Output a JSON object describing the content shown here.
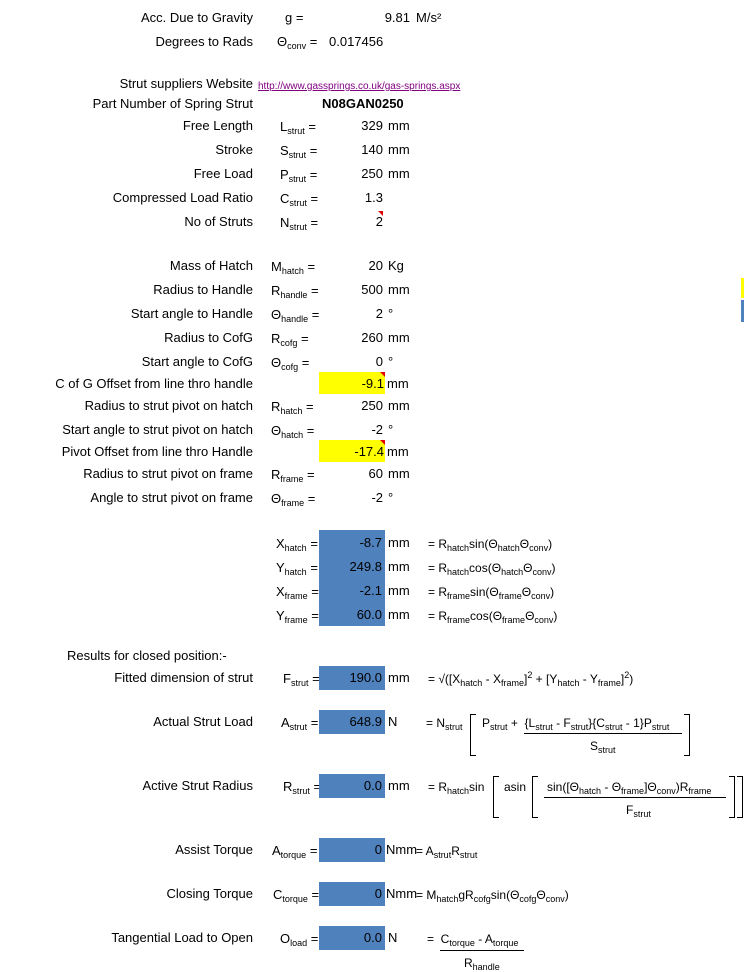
{
  "gravity": {
    "label": "Acc. Due to Gravity",
    "symbol": "g =",
    "value": "9.81",
    "unit": "M/s²"
  },
  "deg_rads": {
    "label": "Degrees to Rads",
    "symbol": "Θ",
    "sub": "conv",
    "eq": " =",
    "value": "0.017456"
  },
  "website": {
    "label": "Strut suppliers Website",
    "url": "http://www.gassprings.co.uk/gas-springs.aspx"
  },
  "part": {
    "label": "Part Number of Spring Strut",
    "value": "N08GAN0250"
  },
  "strut_rows": [
    {
      "label": "Free Length",
      "sym": "L",
      "sub": "strut",
      "value": "329",
      "unit": "mm"
    },
    {
      "label": "Stroke",
      "sym": "S",
      "sub": "strut",
      "value": "140",
      "unit": "mm"
    },
    {
      "label": "Free Load",
      "sym": "P",
      "sub": "strut",
      "value": "250",
      "unit": "mm"
    },
    {
      "label": "Compressed Load Ratio",
      "sym": "C",
      "sub": "strut",
      "value": "1.3",
      "unit": ""
    },
    {
      "label": "No of Struts",
      "sym": "N",
      "sub": "strut",
      "value": "2",
      "unit": ""
    }
  ],
  "hatch_rows": [
    {
      "label": "Mass of Hatch",
      "sym": "M",
      "sub": "hatch",
      "value": "20",
      "unit": "Kg"
    },
    {
      "label": "Radius to Handle",
      "sym": "R",
      "sub": "handle",
      "value": "500",
      "unit": "mm"
    },
    {
      "label": "Start angle to Handle",
      "sym": "Θ",
      "sub": "handle",
      "value": "2",
      "unit": "°"
    },
    {
      "label": "Radius to CofG",
      "sym": "R",
      "sub": "cofg",
      "value": "260",
      "unit": "mm"
    },
    {
      "label": "Start angle to CofG",
      "sym": "Θ",
      "sub": "cofg",
      "value": "0",
      "unit": "°"
    },
    {
      "label": "C of G Offset from line thro handle",
      "sym": "",
      "sub": "",
      "value": "-9.1",
      "unit": "mm"
    },
    {
      "label": "Radius to strut pivot on hatch",
      "sym": "R",
      "sub": "hatch",
      "value": "250",
      "unit": "mm"
    },
    {
      "label": "Start angle to strut pivot on hatch",
      "sym": "Θ",
      "sub": "hatch",
      "value": "-2",
      "unit": "°"
    },
    {
      "label": "Pivot Offset from line thro Handle",
      "sym": "",
      "sub": "",
      "value": "-17.4",
      "unit": "mm"
    },
    {
      "label": "Radius to strut pivot on frame",
      "sym": "R",
      "sub": "frame",
      "value": "60",
      "unit": "mm"
    },
    {
      "label": "Angle to strut pivot on frame",
      "sym": "Θ",
      "sub": "frame",
      "value": "-2",
      "unit": "°"
    }
  ],
  "xy_rows": [
    {
      "sym": "X",
      "sub": "hatch",
      "value": "-8.7",
      "unit": "mm",
      "f1": "R",
      "f1s": "hatch",
      "f2": "sin(Θ",
      "f2s": "hatch",
      "f3": "Θ",
      "f3s": "conv",
      "f4": ")"
    },
    {
      "sym": "Y",
      "sub": "hatch",
      "value": "249.8",
      "unit": "mm",
      "f1": "R",
      "f1s": "hatch",
      "f2": "cos(Θ",
      "f2s": "hatch",
      "f3": "Θ",
      "f3s": "conv",
      "f4": ")"
    },
    {
      "sym": "X",
      "sub": "frame",
      "value": "-2.1",
      "unit": "mm",
      "f1": "R",
      "f1s": "frame",
      "f2": "sin(Θ",
      "f2s": "frame",
      "f3": "Θ",
      "f3s": "conv",
      "f4": ")"
    },
    {
      "sym": "Y",
      "sub": "frame",
      "value": "60.0",
      "unit": "mm",
      "f1": "R",
      "f1s": "frame",
      "f2": "cos(Θ",
      "f2s": "frame",
      "f3": "Θ",
      "f3s": "conv",
      "f4": ")"
    }
  ],
  "results_heading": "Results for closed position:-",
  "fitted": {
    "label": "Fitted dimension of strut",
    "sym": "F",
    "sub": "strut",
    "value": "190.0",
    "unit": "mm"
  },
  "actual": {
    "label": "Actual Strut Load",
    "sym": "A",
    "sub": "strut",
    "value": "648.9",
    "unit": "N"
  },
  "active": {
    "label": "Active Strut Radius",
    "sym": "R",
    "sub": "strut",
    "value": "0.0",
    "unit": "mm"
  },
  "assist": {
    "label": "Assist Torque",
    "sym": "A",
    "sub": "torque",
    "value": "0",
    "unit": "Nmm"
  },
  "closing": {
    "label": "Closing Torque",
    "sym": "C",
    "sub": "torque",
    "value": "0",
    "unit": "Nmm"
  },
  "tangential": {
    "label": "Tangential Load to Open",
    "sym": "O",
    "sub": "load",
    "value": "0.0",
    "unit": "N"
  },
  "colors": {
    "yellow": "#ffff00",
    "blue": "#4f81bd",
    "link": "#800080",
    "marker": "#e00000"
  }
}
